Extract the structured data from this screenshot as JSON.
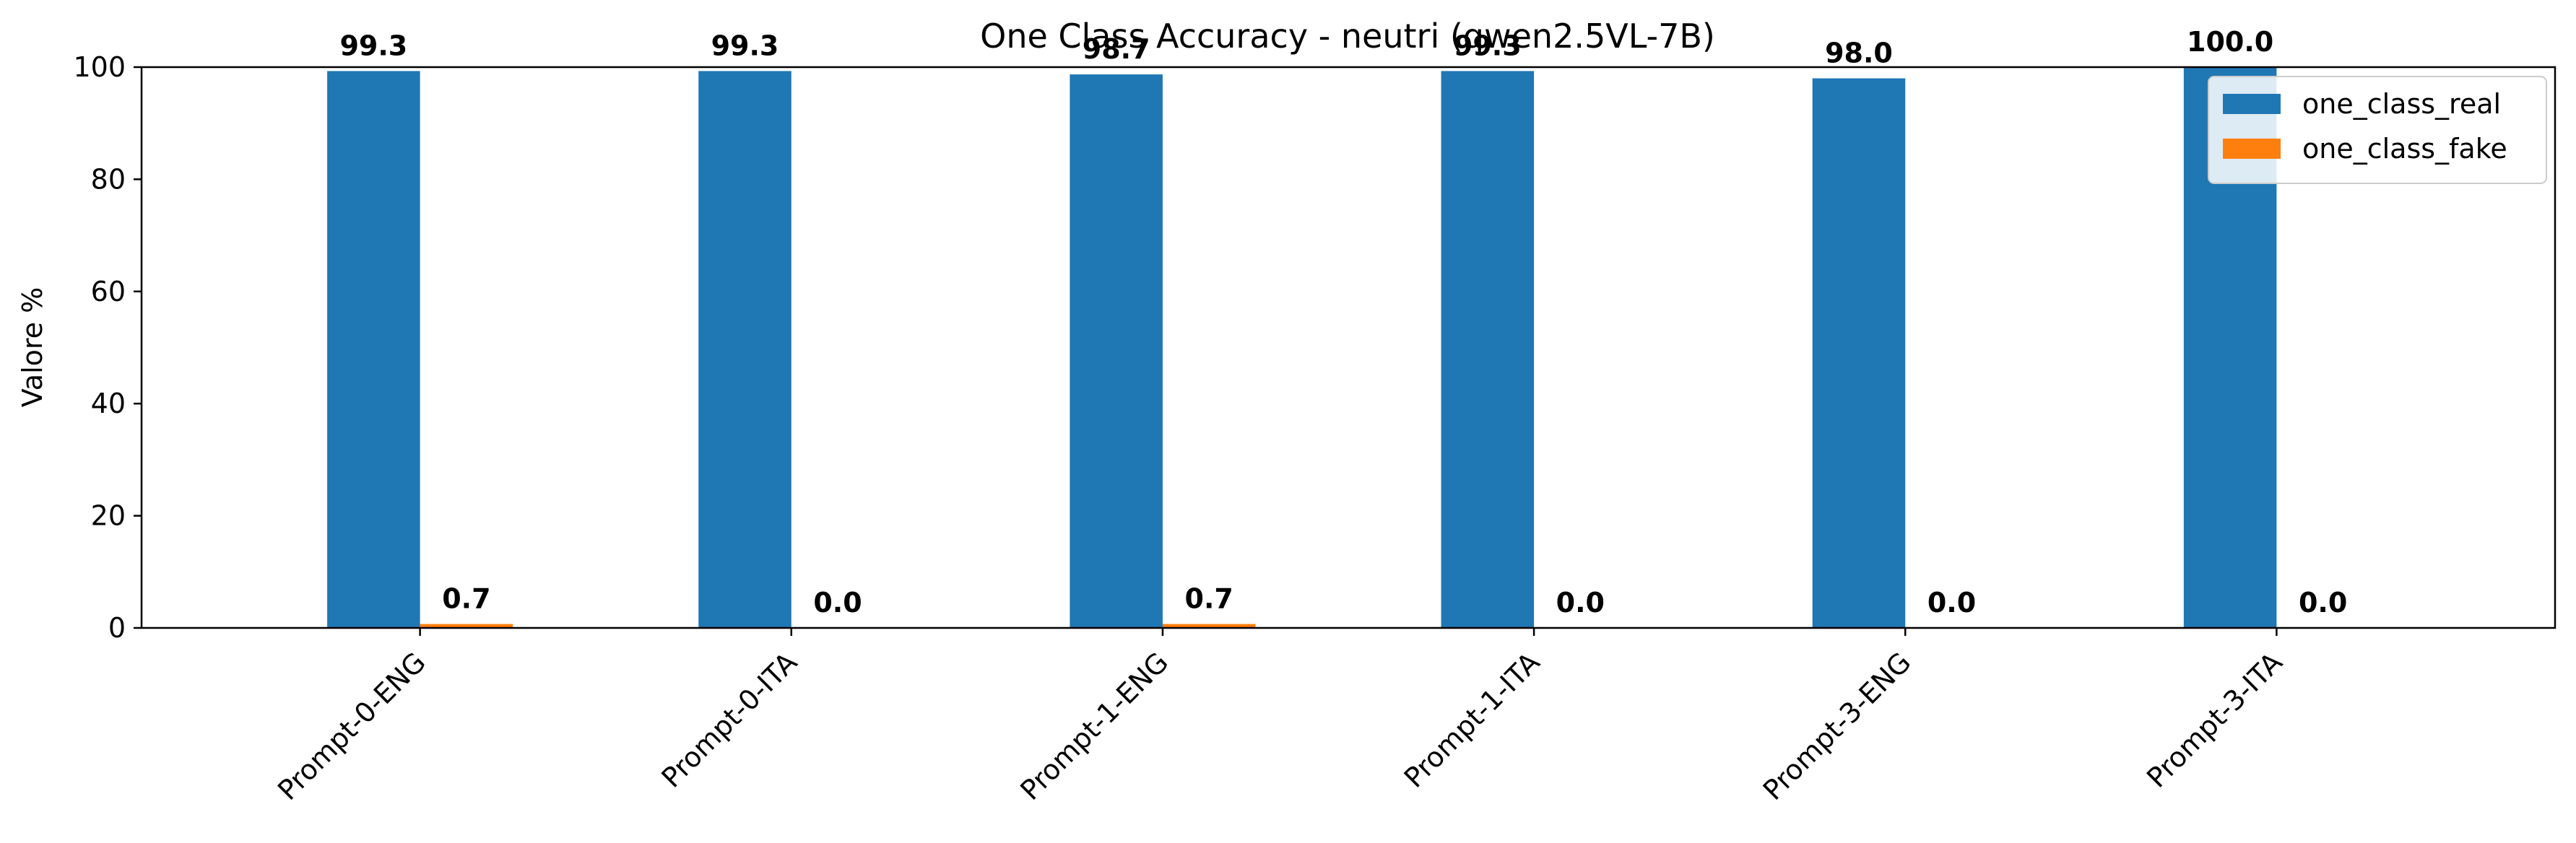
{
  "chart_data": {
    "type": "bar",
    "title": "One Class Accuracy - neutri (qwen2.5VL-7B)",
    "xlabel": "",
    "ylabel": "Valore %",
    "ylim": [
      0,
      100
    ],
    "yticks": [
      "0",
      "20",
      "40",
      "60",
      "80",
      "100"
    ],
    "categories": [
      "Prompt-0-ENG",
      "Prompt-0-ITA",
      "Prompt-1-ENG",
      "Prompt-1-ITA",
      "Prompt-3-ENG",
      "Prompt-3-ITA"
    ],
    "series": [
      {
        "name": "one_class_real",
        "color": "#1f77b4",
        "values": [
          99.3,
          99.3,
          98.7,
          99.3,
          98.0,
          100.0
        ],
        "labels": [
          "99.3",
          "99.3",
          "98.7",
          "99.3",
          "98.0",
          "100.0"
        ]
      },
      {
        "name": "one_class_fake",
        "color": "#ff7f0e",
        "values": [
          0.7,
          0.0,
          0.7,
          0.0,
          0.0,
          0.0
        ],
        "labels": [
          "0.7",
          "0.0",
          "0.7",
          "0.0",
          "0.0",
          "0.0"
        ]
      }
    ],
    "grid": false,
    "legend": "top-right"
  }
}
